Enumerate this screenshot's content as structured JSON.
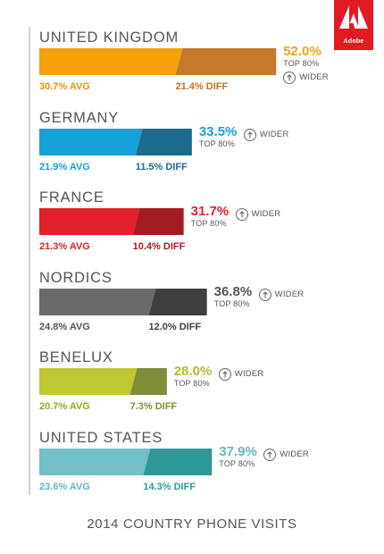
{
  "logo_text": "Adobe",
  "logo_color": "#e21b23",
  "chart_data": {
    "type": "bar",
    "title": "2014 COUNTRY PHONE VISITS",
    "top_caption": "TOP 80%",
    "wider_text": "WIDER",
    "units": "%",
    "categories": [
      "UNITED KINGDOM",
      "GERMANY",
      "FRANCE",
      "NORDICS",
      "BENELUX",
      "UNITED STATES"
    ],
    "series": [
      {
        "name": "AVG",
        "values": [
          30.7,
          21.9,
          21.3,
          24.8,
          20.7,
          23.6
        ]
      },
      {
        "name": "DIFF",
        "values": [
          21.4,
          11.5,
          10.4,
          12.0,
          7.3,
          14.3
        ]
      },
      {
        "name": "TOP 80%",
        "values": [
          52.0,
          33.5,
          31.7,
          36.8,
          28.0,
          37.9
        ]
      }
    ],
    "rows": [
      {
        "country": "UNITED KINGDOM",
        "avg": 30.7,
        "diff": 21.4,
        "top": 52.0,
        "avg_label": "30.7% AVG",
        "diff_label": "21.4% DIFF",
        "top_label": "52.0%",
        "avg_color": "#f6a00a",
        "diff_color": "#c8782a",
        "avg_text_color": "#e3920a",
        "diff_text_color": "#c0702a",
        "top_text_color": "#f0a31a"
      },
      {
        "country": "GERMANY",
        "avg": 21.9,
        "diff": 11.5,
        "top": 33.5,
        "avg_label": "21.9% AVG",
        "diff_label": "11.5% DIFF",
        "top_label": "33.5%",
        "avg_color": "#17a1d9",
        "diff_color": "#1c6b8c",
        "avg_text_color": "#1a9ccf",
        "diff_text_color": "#1c6b8c",
        "top_text_color": "#17a1d9"
      },
      {
        "country": "FRANCE",
        "avg": 21.3,
        "diff": 10.4,
        "top": 31.7,
        "avg_label": "21.3% AVG",
        "diff_label": "10.4% DIFF",
        "top_label": "31.7%",
        "avg_color": "#e41f2c",
        "diff_color": "#a51b24",
        "avg_text_color": "#d91f2a",
        "diff_text_color": "#a51b24",
        "top_text_color": "#e41f2c"
      },
      {
        "country": "NORDICS",
        "avg": 24.8,
        "diff": 12.0,
        "top": 36.8,
        "avg_label": "24.8% AVG",
        "diff_label": "12.0% DIFF",
        "top_label": "36.8%",
        "avg_color": "#6a6a6a",
        "diff_color": "#3f3f41",
        "avg_text_color": "#555555",
        "diff_text_color": "#3f3f41",
        "top_text_color": "#555555"
      },
      {
        "country": "BENELUX",
        "avg": 20.7,
        "diff": 7.3,
        "top": 28.0,
        "avg_label": "20.7% AVG",
        "diff_label": "7.3% DIFF",
        "top_label": "28.0%",
        "avg_color": "#bfc733",
        "diff_color": "#7d8d38",
        "avg_text_color": "#9aa62a",
        "diff_text_color": "#7d8d38",
        "top_text_color": "#b3bc2a"
      },
      {
        "country": "UNITED STATES",
        "avg": 23.6,
        "diff": 14.3,
        "top": 37.9,
        "avg_label": "23.6% AVG",
        "diff_label": "14.3% DIFF",
        "top_label": "37.9%",
        "avg_color": "#72c1c6",
        "diff_color": "#2e9898",
        "avg_text_color": "#5fb8bd",
        "diff_text_color": "#2e9898",
        "top_text_color": "#5fb8bd"
      }
    ]
  }
}
